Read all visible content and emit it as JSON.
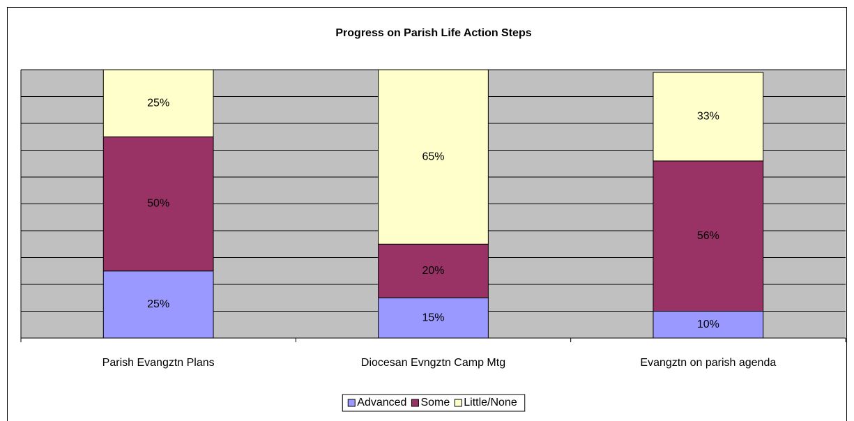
{
  "chart_data": {
    "type": "stacked_bar",
    "title": "Progress on Parish Life Action Steps",
    "categories": [
      "Parish Evangztn Plans",
      "Diocesan Evngztn Camp Mtg",
      "Evangztn on parish agenda"
    ],
    "series": [
      {
        "name": "Advanced",
        "color": "#9999ff",
        "values": [
          25,
          15,
          10
        ]
      },
      {
        "name": "Some",
        "color": "#993366",
        "values": [
          50,
          20,
          56
        ]
      },
      {
        "name": "Little/None",
        "color": "#ffffcc",
        "values": [
          25,
          65,
          33
        ]
      }
    ],
    "value_labels": [
      [
        "25%",
        "15%",
        "10%"
      ],
      [
        "50%",
        "20%",
        "56%"
      ],
      [
        "25%",
        "65%",
        "33%"
      ]
    ],
    "ylim": [
      0,
      100
    ],
    "yticks": [
      0,
      10,
      20,
      30,
      40,
      50,
      60,
      70,
      80,
      90,
      100
    ],
    "grid": true,
    "legend": "bottom"
  }
}
